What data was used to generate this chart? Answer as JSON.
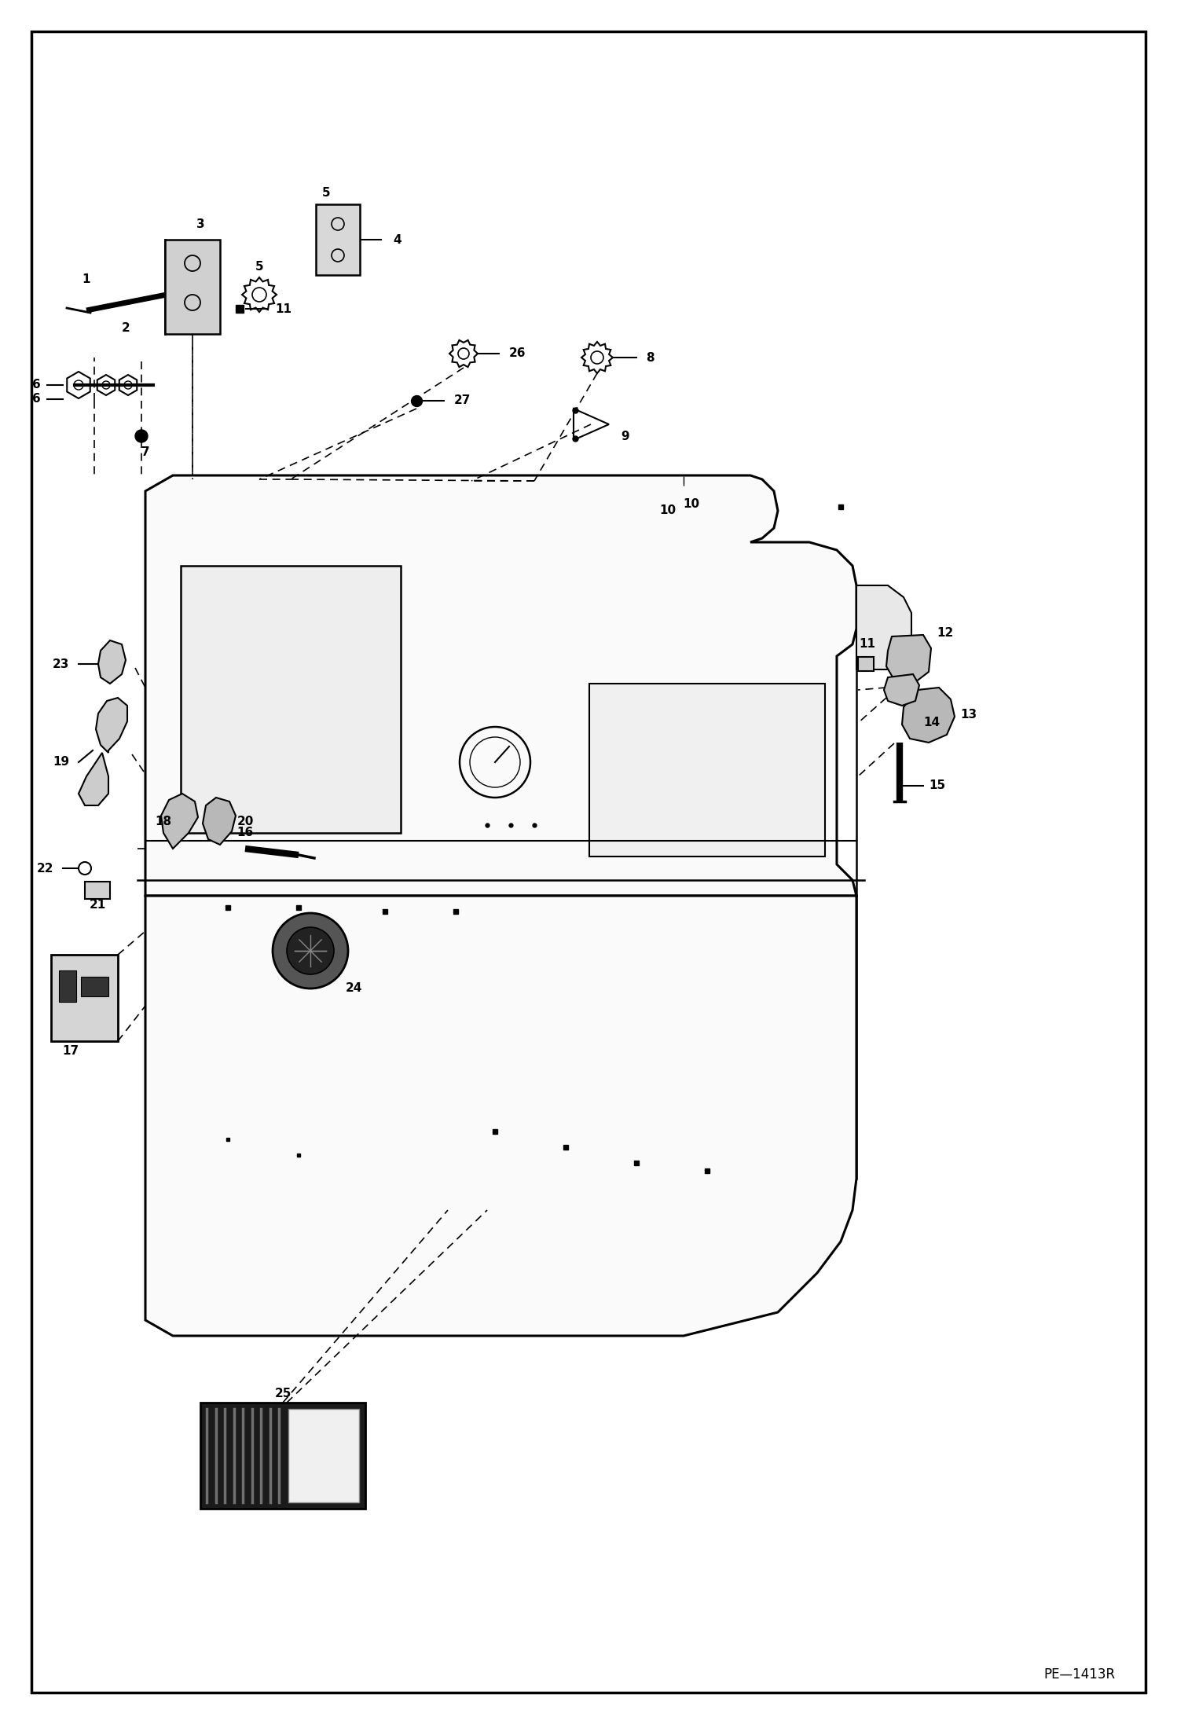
{
  "bg_color": "#ffffff",
  "line_color": "#000000",
  "fig_width": 14.98,
  "fig_height": 21.94,
  "dpi": 100,
  "label_fs": 11,
  "diagram_code": "PE—1413R",
  "border_lw": 2.5
}
